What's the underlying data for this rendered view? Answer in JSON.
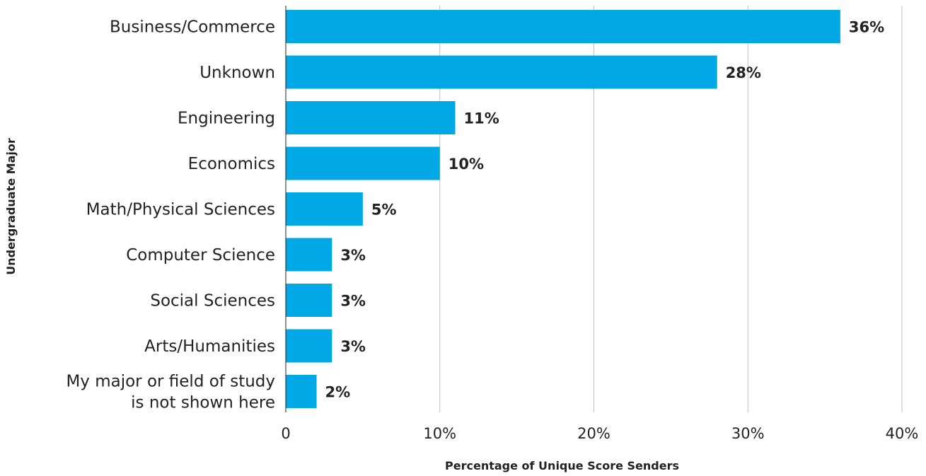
{
  "chart_data": {
    "type": "bar",
    "orientation": "horizontal",
    "categories": [
      "Business/Commerce",
      "Unknown",
      "Engineering",
      "Economics",
      "Math/Physical Sciences",
      "Computer Science",
      "Social Sciences",
      "Arts/Humanities",
      "My major or field of study is not shown here"
    ],
    "category_lines": [
      [
        "Business/Commerce"
      ],
      [
        "Unknown"
      ],
      [
        "Engineering"
      ],
      [
        "Economics"
      ],
      [
        "Math/Physical Sciences"
      ],
      [
        "Computer Science"
      ],
      [
        "Social Sciences"
      ],
      [
        "Arts/Humanities"
      ],
      [
        "My major or field of study",
        "is not shown here"
      ]
    ],
    "values": [
      36,
      28,
      11,
      10,
      5,
      3,
      3,
      3,
      2
    ],
    "data_labels": [
      "36%",
      "28%",
      "11%",
      "10%",
      "5%",
      "3%",
      "3%",
      "3%",
      "2%"
    ],
    "xlim": [
      0,
      40
    ],
    "xticks": [
      0,
      10,
      20,
      30,
      40
    ],
    "xtick_labels": [
      "0",
      "10%",
      "20%",
      "30%",
      "40%"
    ],
    "xlabel": "Percentage of Unique Score Senders",
    "ylabel": "Undergraduate Major",
    "title": "",
    "grid": "vertical",
    "bar_color": "#00a8e6"
  }
}
